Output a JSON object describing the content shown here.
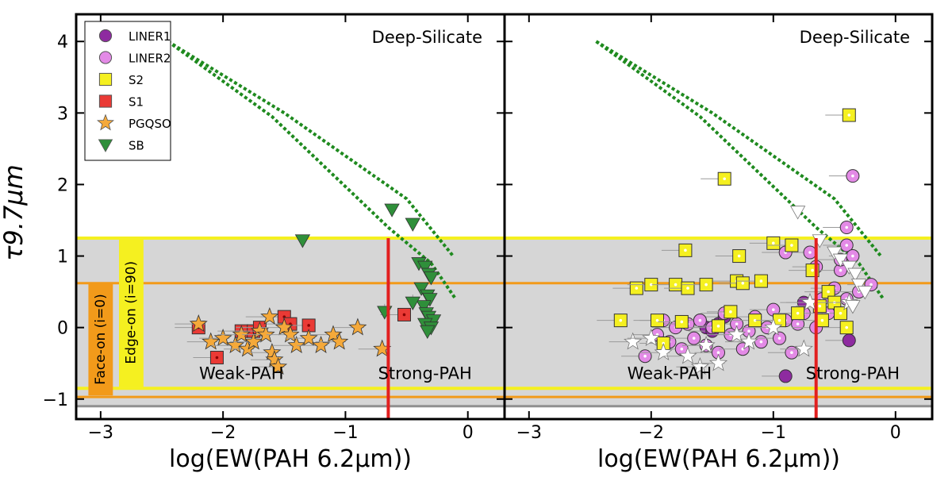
{
  "chart_data": {
    "type": "scatter",
    "ylabel": "τ9.7μm",
    "xlabel": "log(EW(PAH 6.2μm))",
    "xlim": [
      -3.2,
      0.3
    ],
    "ylim": [
      -1.28,
      4.38
    ],
    "xticks": [
      -3,
      -2,
      -1,
      0
    ],
    "xtick_labels": [
      "−3",
      "−2",
      "−1",
      "0"
    ],
    "yticks": [
      -1,
      0,
      1,
      2,
      3,
      4
    ],
    "ytick_labels": [
      "−1",
      "0",
      "1",
      "2",
      "3",
      "4"
    ],
    "regions": {
      "gray_band": [
        -1.1,
        1.25
      ],
      "yellow_lines": [
        1.25,
        -0.85
      ],
      "orange_lines": [
        0.62,
        -0.97
      ],
      "gray_line": -1.1,
      "red_line_x": -0.65,
      "face_on_box": {
        "x": [
          -3.1,
          -2.9
        ],
        "y": [
          -0.95,
          0.62
        ]
      },
      "edge_on_box": {
        "x": [
          -2.85,
          -2.65
        ],
        "y": [
          -0.83,
          1.25
        ]
      }
    },
    "region_labels": {
      "deep_silicate": "Deep-Silicate",
      "weak_pah": "Weak-PAH",
      "strong_pah": "Strong-PAH",
      "face_on": "Face-on (i=0)",
      "edge_on": "Edge-on (i=90)"
    },
    "model_curves": [
      {
        "name": "upper",
        "x": [
          -2.45,
          -1.5,
          -0.5,
          -0.12
        ],
        "y": [
          4.0,
          3.0,
          1.8,
          1.0
        ]
      },
      {
        "name": "lower",
        "x": [
          -2.45,
          -1.6,
          -0.65,
          -0.3,
          -0.1
        ],
        "y": [
          4.0,
          2.95,
          1.4,
          0.9,
          0.4
        ]
      }
    ],
    "legend": [
      {
        "key": "LINER1",
        "label": "LINER1",
        "marker": "circle",
        "color": "#8e2ba0"
      },
      {
        "key": "LINER2",
        "label": "LINER2",
        "marker": "circle",
        "color": "#e38ae6"
      },
      {
        "key": "S2",
        "label": "S2",
        "marker": "square",
        "color": "#f5f020"
      },
      {
        "key": "S1",
        "label": "S1",
        "marker": "square",
        "color": "#ea3a35"
      },
      {
        "key": "PGQSO",
        "label": "PGQSO",
        "marker": "star",
        "color": "#f5a93a"
      },
      {
        "key": "SB",
        "label": "SB",
        "marker": "triangle",
        "color": "#2f8f3a"
      }
    ],
    "panels": [
      {
        "name": "left",
        "series": [
          {
            "name": "S1",
            "x": [
              -2.2,
              -2.05,
              -1.85,
              -1.75,
              -1.7,
              -1.5,
              -1.45,
              -1.3,
              -0.52
            ],
            "y": [
              0.0,
              -0.42,
              -0.05,
              -0.05,
              0.0,
              0.15,
              0.05,
              0.03,
              0.18
            ]
          },
          {
            "name": "PGQSO",
            "x": [
              -2.2,
              -2.1,
              -2.0,
              -1.9,
              -1.85,
              -1.8,
              -1.75,
              -1.7,
              -1.65,
              -1.62,
              -1.6,
              -1.58,
              -1.55,
              -1.5,
              -1.45,
              -1.4,
              -1.3,
              -1.2,
              -1.1,
              -1.05,
              -0.9,
              -0.7
            ],
            "y": [
              0.05,
              -0.2,
              -0.15,
              -0.25,
              -0.1,
              -0.3,
              -0.2,
              -0.05,
              -0.1,
              0.15,
              -0.35,
              -0.45,
              -0.55,
              0.0,
              -0.1,
              -0.25,
              -0.15,
              -0.25,
              -0.1,
              -0.2,
              0.0,
              -0.3
            ]
          },
          {
            "name": "SB",
            "x": [
              -1.35,
              -0.62,
              -0.45,
              -0.4,
              -0.35,
              -0.32,
              -0.3,
              -0.38,
              -0.33,
              -0.31,
              -0.36,
              -0.34,
              -0.32,
              -0.28,
              -0.35,
              -0.3,
              -0.33
            ],
            "y": [
              1.22,
              1.65,
              1.45,
              0.9,
              0.85,
              0.75,
              0.7,
              0.55,
              0.45,
              0.4,
              0.3,
              0.2,
              0.15,
              0.1,
              0.05,
              0.0,
              -0.05
            ]
          },
          {
            "name": "SB_upper",
            "x": [
              -0.68,
              -0.45
            ],
            "y": [
              0.22,
              0.35
            ]
          }
        ]
      },
      {
        "name": "right",
        "series": [
          {
            "name": "LINER1",
            "x": [
              -1.6,
              -1.55,
              -1.5,
              -1.45,
              -1.4,
              -0.75,
              -0.38,
              -0.9
            ],
            "y": [
              0.1,
              0.0,
              -0.05,
              0.05,
              0.15,
              0.35,
              -0.18,
              -0.68
            ]
          },
          {
            "name": "LINER2",
            "x": [
              -2.05,
              -1.95,
              -1.9,
              -1.85,
              -1.8,
              -1.75,
              -1.7,
              -1.65,
              -1.6,
              -1.55,
              -1.5,
              -1.45,
              -1.4,
              -1.35,
              -1.3,
              -1.25,
              -1.2,
              -1.15,
              -1.1,
              -1.05,
              -1.0,
              -0.95,
              -0.9,
              -0.85,
              -0.8,
              -0.75,
              -0.7,
              -0.65,
              -0.6,
              -0.55,
              -0.5,
              -0.45,
              -0.4,
              -0.35,
              -0.3,
              -0.2,
              -0.4,
              -0.35,
              -0.9,
              -0.65,
              -0.45,
              -0.4
            ],
            "y": [
              -0.4,
              -0.1,
              0.1,
              -0.2,
              0.0,
              -0.3,
              0.05,
              -0.15,
              0.1,
              -0.25,
              0.0,
              -0.35,
              0.2,
              -0.1,
              0.05,
              -0.3,
              -0.05,
              0.15,
              -0.2,
              0.0,
              0.25,
              -0.15,
              0.1,
              -0.35,
              0.05,
              0.2,
              1.05,
              0.85,
              0.4,
              0.2,
              0.55,
              0.8,
              1.15,
              1.0,
              0.5,
              0.6,
              1.4,
              2.12,
              1.05,
              0.0,
              0.95,
              0.4
            ]
          },
          {
            "name": "S2",
            "x": [
              -2.25,
              -2.12,
              -2.0,
              -1.95,
              -1.9,
              -1.8,
              -1.75,
              -1.72,
              -1.7,
              -1.55,
              -1.45,
              -1.4,
              -1.35,
              -1.3,
              -1.28,
              -1.25,
              -1.15,
              -1.1,
              -1.0,
              -0.95,
              -0.85,
              -0.8,
              -0.68,
              -0.62,
              -0.6,
              -0.55,
              -0.5,
              -0.45,
              -0.4,
              -0.38
            ],
            "y": [
              0.1,
              0.55,
              0.6,
              0.1,
              -0.22,
              0.6,
              0.08,
              1.08,
              0.55,
              0.6,
              0.02,
              2.08,
              0.22,
              0.65,
              1.0,
              0.62,
              0.1,
              0.65,
              1.18,
              0.1,
              1.15,
              0.2,
              0.8,
              0.3,
              0.1,
              0.5,
              0.35,
              0.2,
              0.0,
              2.97
            ]
          },
          {
            "name": "PGQSO",
            "x": [
              -2.15,
              -2.0,
              -1.9,
              -1.7,
              -1.6,
              -1.55,
              -1.45,
              -1.3,
              -1.2,
              -1.0,
              -0.75,
              -0.7,
              -0.38
            ],
            "y": [
              -0.2,
              -0.15,
              -0.35,
              -0.4,
              -0.55,
              -0.25,
              -0.5,
              -0.1,
              -0.2,
              0.0,
              -0.3,
              0.35,
              0.35
            ]
          },
          {
            "name": "SB",
            "x": [
              -0.8,
              -0.62,
              -0.5,
              -0.45,
              -0.38,
              -0.33,
              -0.3,
              -0.25,
              -0.35
            ],
            "y": [
              1.62,
              1.22,
              1.05,
              0.95,
              0.85,
              0.75,
              0.6,
              0.5,
              0.3
            ]
          }
        ]
      }
    ]
  }
}
